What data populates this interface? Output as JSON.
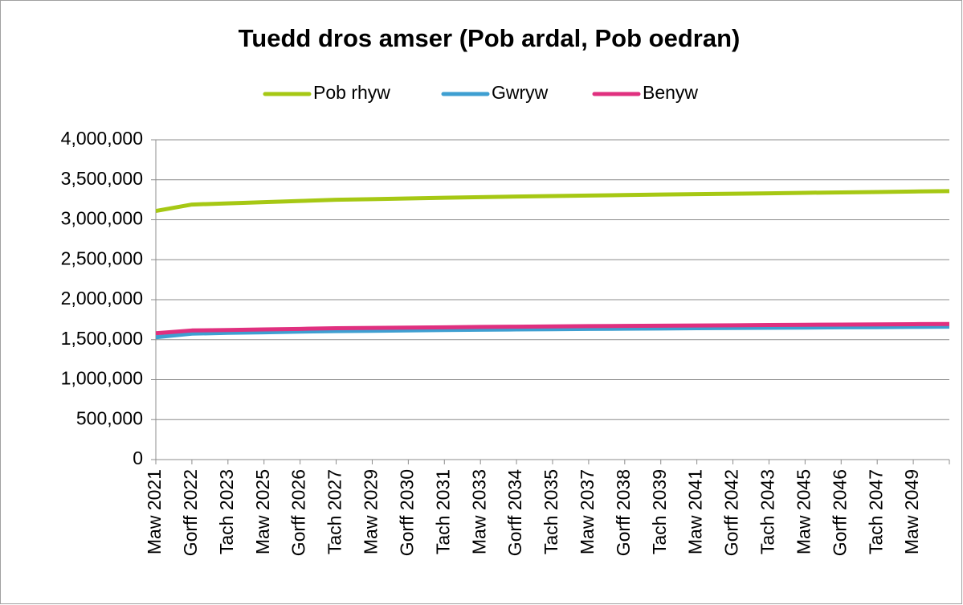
{
  "chart_data": {
    "type": "line",
    "title": "Tuedd dros amser (Pob ardal, Pob oedran)",
    "categories": [
      "Maw 2021",
      "Gorff 2022",
      "Tach 2023",
      "Maw 2025",
      "Gorff 2026",
      "Tach 2027",
      "Maw 2029",
      "Gorff 2030",
      "Tach 2031",
      "Maw 2033",
      "Gorff 2034",
      "Tach 2035",
      "Maw 2037",
      "Gorff 2038",
      "Tach 2039",
      "Maw 2041",
      "Gorff 2042",
      "Tach 2043",
      "Maw 2045",
      "Gorff 2046",
      "Tach 2047",
      "Maw 2049",
      null
    ],
    "series": [
      {
        "name": "Pob rhyw",
        "color": "#a6c814",
        "values": [
          3110000,
          3190000,
          3205000,
          3220000,
          3235000,
          3250000,
          3258000,
          3266000,
          3275000,
          3283000,
          3290000,
          3297000,
          3303000,
          3309000,
          3315000,
          3320000,
          3326000,
          3331000,
          3337000,
          3342000,
          3347000,
          3353000,
          3358000
        ]
      },
      {
        "name": "Gwryw",
        "color": "#3e9fd1",
        "values": [
          1530000,
          1575000,
          1585000,
          1592000,
          1600000,
          1607000,
          1611000,
          1615000,
          1620000,
          1624000,
          1628000,
          1631000,
          1634000,
          1637000,
          1640000,
          1643000,
          1646000,
          1648000,
          1651000,
          1654000,
          1656000,
          1659000,
          1662000
        ]
      },
      {
        "name": "Benyw",
        "color": "#e0307f",
        "values": [
          1580000,
          1615000,
          1620000,
          1628000,
          1635000,
          1643000,
          1647000,
          1651000,
          1655000,
          1659000,
          1662000,
          1666000,
          1669000,
          1672000,
          1675000,
          1677000,
          1680000,
          1683000,
          1686000,
          1688000,
          1691000,
          1694000,
          1696000
        ]
      }
    ],
    "ylim": [
      0,
      4000000
    ],
    "yticks": [
      0,
      {
        "value": 500000,
        "label": "500,000"
      },
      {
        "value": 1000000,
        "label": "1,000,000"
      },
      {
        "value": 1500000,
        "label": "1,500,000"
      },
      {
        "value": 2000000,
        "label": "2,000,000"
      },
      {
        "value": 2500000,
        "label": "2,500,000"
      },
      {
        "value": 3000000,
        "label": "3,000,000"
      },
      {
        "value": 3500000,
        "label": "3,500,000"
      },
      {
        "value": 4000000,
        "label": "4,000,000"
      }
    ],
    "grid": true,
    "legend": "top"
  }
}
